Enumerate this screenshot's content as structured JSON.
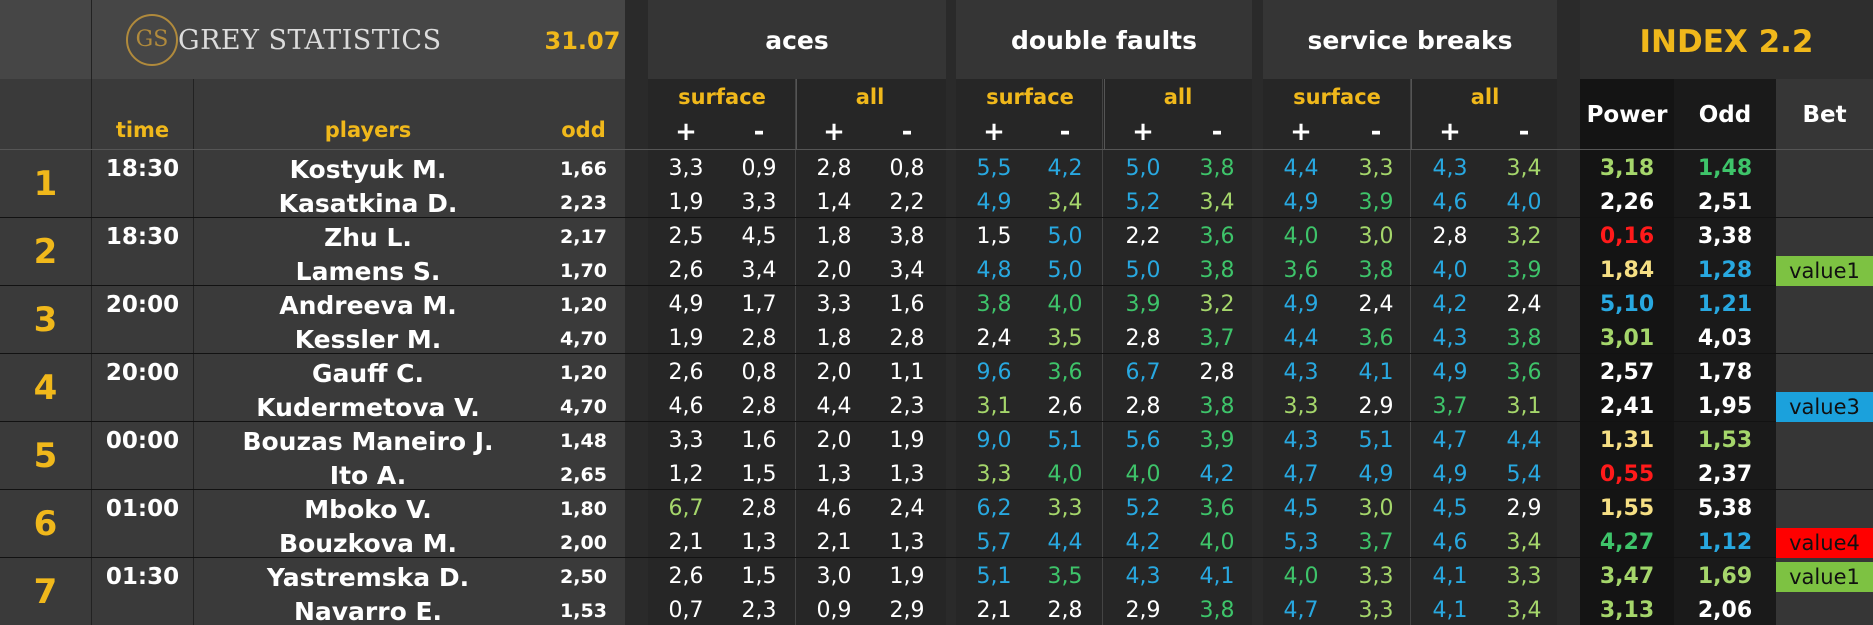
{
  "header": {
    "logo_initials": "GS",
    "brand": "GREY STATISTICS",
    "date": "31.07",
    "groups": {
      "aces": "aces",
      "double_faults": "double faults",
      "service_breaks": "service breaks"
    },
    "index_title": "INDEX 2.2",
    "sub": {
      "surface": "surface",
      "all": "all",
      "plus": "+",
      "minus": "-"
    },
    "columns": {
      "time": "time",
      "players": "players",
      "odd": "odd",
      "power": "Power",
      "idx_odd": "Odd",
      "bet": "Bet"
    }
  },
  "colors": {
    "white": "#ffffff",
    "blue": "#28a8e0",
    "green": "#3ec46a",
    "lightgreen": "#a5d66b",
    "red": "#ff1a1a",
    "yellow": "#f6df84",
    "gold": "#f0b81b",
    "bet_green": "#7dc242",
    "bet_blue": "#1ba1dc",
    "bet_red": "#ff0000"
  },
  "matches": [
    {
      "num": "1",
      "time": "18:30",
      "bet": "",
      "players": [
        {
          "name": "Kostyuk M.",
          "odd": "1,66",
          "stats": [
            [
              "3,3",
              "w"
            ],
            [
              "0,9",
              "w"
            ],
            [
              "2,8",
              "w"
            ],
            [
              "0,8",
              "w"
            ],
            [
              "5,5",
              "b"
            ],
            [
              "4,2",
              "b"
            ],
            [
              "5,0",
              "b"
            ],
            [
              "3,8",
              "g"
            ],
            [
              "4,4",
              "b"
            ],
            [
              "3,3",
              "lg"
            ],
            [
              "4,3",
              "b"
            ],
            [
              "3,4",
              "lg"
            ]
          ],
          "power": [
            "3,18",
            "lg"
          ],
          "index_odd": [
            "1,48",
            "g"
          ],
          "bet": ""
        },
        {
          "name": "Kasatkina D.",
          "odd": "2,23",
          "stats": [
            [
              "1,9",
              "w"
            ],
            [
              "3,3",
              "w"
            ],
            [
              "1,4",
              "w"
            ],
            [
              "2,2",
              "w"
            ],
            [
              "4,9",
              "b"
            ],
            [
              "3,4",
              "lg"
            ],
            [
              "5,2",
              "b"
            ],
            [
              "3,4",
              "lg"
            ],
            [
              "4,9",
              "b"
            ],
            [
              "3,9",
              "g"
            ],
            [
              "4,6",
              "b"
            ],
            [
              "4,0",
              "b"
            ]
          ],
          "power": [
            "2,26",
            "w"
          ],
          "index_odd": [
            "2,51",
            "w"
          ],
          "bet": ""
        }
      ]
    },
    {
      "num": "2",
      "time": "18:30",
      "players": [
        {
          "name": "Zhu L.",
          "odd": "2,17",
          "stats": [
            [
              "2,5",
              "w"
            ],
            [
              "4,5",
              "w"
            ],
            [
              "1,8",
              "w"
            ],
            [
              "3,8",
              "w"
            ],
            [
              "1,5",
              "w"
            ],
            [
              "5,0",
              "b"
            ],
            [
              "2,2",
              "w"
            ],
            [
              "3,6",
              "g"
            ],
            [
              "4,0",
              "g"
            ],
            [
              "3,0",
              "lg"
            ],
            [
              "2,8",
              "w"
            ],
            [
              "3,2",
              "lg"
            ]
          ],
          "power": [
            "0,16",
            "r"
          ],
          "index_odd": [
            "3,38",
            "w"
          ],
          "bet": ""
        },
        {
          "name": "Lamens S.",
          "odd": "1,70",
          "stats": [
            [
              "2,6",
              "w"
            ],
            [
              "3,4",
              "w"
            ],
            [
              "2,0",
              "w"
            ],
            [
              "3,4",
              "w"
            ],
            [
              "4,8",
              "b"
            ],
            [
              "5,0",
              "b"
            ],
            [
              "5,0",
              "b"
            ],
            [
              "3,8",
              "g"
            ],
            [
              "3,6",
              "g"
            ],
            [
              "3,8",
              "g"
            ],
            [
              "4,0",
              "b"
            ],
            [
              "3,9",
              "g"
            ]
          ],
          "power": [
            "1,84",
            "y"
          ],
          "index_odd": [
            "1,28",
            "b"
          ],
          "bet": "value1",
          "bet_color": "#7dc242"
        }
      ]
    },
    {
      "num": "3",
      "time": "20:00",
      "players": [
        {
          "name": "Andreeva M.",
          "odd": "1,20",
          "stats": [
            [
              "4,9",
              "w"
            ],
            [
              "1,7",
              "w"
            ],
            [
              "3,3",
              "w"
            ],
            [
              "1,6",
              "w"
            ],
            [
              "3,8",
              "g"
            ],
            [
              "4,0",
              "g"
            ],
            [
              "3,9",
              "g"
            ],
            [
              "3,2",
              "lg"
            ],
            [
              "4,9",
              "b"
            ],
            [
              "2,4",
              "w"
            ],
            [
              "4,2",
              "b"
            ],
            [
              "2,4",
              "w"
            ]
          ],
          "power": [
            "5,10",
            "b"
          ],
          "index_odd": [
            "1,21",
            "b"
          ],
          "bet": ""
        },
        {
          "name": "Kessler M.",
          "odd": "4,70",
          "stats": [
            [
              "1,9",
              "w"
            ],
            [
              "2,8",
              "w"
            ],
            [
              "1,8",
              "w"
            ],
            [
              "2,8",
              "w"
            ],
            [
              "2,4",
              "w"
            ],
            [
              "3,5",
              "lg"
            ],
            [
              "2,8",
              "w"
            ],
            [
              "3,7",
              "g"
            ],
            [
              "4,4",
              "b"
            ],
            [
              "3,6",
              "g"
            ],
            [
              "4,3",
              "b"
            ],
            [
              "3,8",
              "g"
            ]
          ],
          "power": [
            "3,01",
            "lg"
          ],
          "index_odd": [
            "4,03",
            "w"
          ],
          "bet": ""
        }
      ]
    },
    {
      "num": "4",
      "time": "20:00",
      "players": [
        {
          "name": "Gauff C.",
          "odd": "1,20",
          "stats": [
            [
              "2,6",
              "w"
            ],
            [
              "0,8",
              "w"
            ],
            [
              "2,0",
              "w"
            ],
            [
              "1,1",
              "w"
            ],
            [
              "9,6",
              "b"
            ],
            [
              "3,6",
              "g"
            ],
            [
              "6,7",
              "b"
            ],
            [
              "2,8",
              "w"
            ],
            [
              "4,3",
              "b"
            ],
            [
              "4,1",
              "b"
            ],
            [
              "4,9",
              "b"
            ],
            [
              "3,6",
              "g"
            ]
          ],
          "power": [
            "2,57",
            "w"
          ],
          "index_odd": [
            "1,78",
            "w"
          ],
          "bet": ""
        },
        {
          "name": "Kudermetova V.",
          "odd": "4,70",
          "stats": [
            [
              "4,6",
              "w"
            ],
            [
              "2,8",
              "w"
            ],
            [
              "4,4",
              "w"
            ],
            [
              "2,3",
              "w"
            ],
            [
              "3,1",
              "lg"
            ],
            [
              "2,6",
              "w"
            ],
            [
              "2,8",
              "w"
            ],
            [
              "3,8",
              "g"
            ],
            [
              "3,3",
              "lg"
            ],
            [
              "2,9",
              "w"
            ],
            [
              "3,7",
              "g"
            ],
            [
              "3,1",
              "lg"
            ]
          ],
          "power": [
            "2,41",
            "w"
          ],
          "index_odd": [
            "1,95",
            "w"
          ],
          "bet": "value3",
          "bet_color": "#1ba1dc"
        }
      ]
    },
    {
      "num": "5",
      "time": "00:00",
      "players": [
        {
          "name": "Bouzas Maneiro J.",
          "odd": "1,48",
          "stats": [
            [
              "3,3",
              "w"
            ],
            [
              "1,6",
              "w"
            ],
            [
              "2,0",
              "w"
            ],
            [
              "1,9",
              "w"
            ],
            [
              "9,0",
              "b"
            ],
            [
              "5,1",
              "b"
            ],
            [
              "5,6",
              "b"
            ],
            [
              "3,9",
              "g"
            ],
            [
              "4,3",
              "b"
            ],
            [
              "5,1",
              "b"
            ],
            [
              "4,7",
              "b"
            ],
            [
              "4,4",
              "b"
            ]
          ],
          "power": [
            "1,31",
            "y"
          ],
          "index_odd": [
            "1,53",
            "lg"
          ],
          "bet": ""
        },
        {
          "name": "Ito A.",
          "odd": "2,65",
          "stats": [
            [
              "1,2",
              "w"
            ],
            [
              "1,5",
              "w"
            ],
            [
              "1,3",
              "w"
            ],
            [
              "1,3",
              "w"
            ],
            [
              "3,3",
              "lg"
            ],
            [
              "4,0",
              "g"
            ],
            [
              "4,0",
              "g"
            ],
            [
              "4,2",
              "b"
            ],
            [
              "4,7",
              "b"
            ],
            [
              "4,9",
              "b"
            ],
            [
              "4,9",
              "b"
            ],
            [
              "5,4",
              "b"
            ]
          ],
          "power": [
            "0,55",
            "r"
          ],
          "index_odd": [
            "2,37",
            "w"
          ],
          "bet": ""
        }
      ]
    },
    {
      "num": "6",
      "time": "01:00",
      "players": [
        {
          "name": "Mboko V.",
          "odd": "1,80",
          "stats": [
            [
              "6,7",
              "lg"
            ],
            [
              "2,8",
              "w"
            ],
            [
              "4,6",
              "w"
            ],
            [
              "2,4",
              "w"
            ],
            [
              "6,2",
              "b"
            ],
            [
              "3,3",
              "lg"
            ],
            [
              "5,2",
              "b"
            ],
            [
              "3,6",
              "g"
            ],
            [
              "4,5",
              "b"
            ],
            [
              "3,0",
              "lg"
            ],
            [
              "4,5",
              "b"
            ],
            [
              "2,9",
              "w"
            ]
          ],
          "power": [
            "1,55",
            "y"
          ],
          "index_odd": [
            "5,38",
            "w"
          ],
          "bet": ""
        },
        {
          "name": "Bouzkova M.",
          "odd": "2,00",
          "stats": [
            [
              "2,1",
              "w"
            ],
            [
              "1,3",
              "w"
            ],
            [
              "2,1",
              "w"
            ],
            [
              "1,3",
              "w"
            ],
            [
              "5,7",
              "b"
            ],
            [
              "4,4",
              "b"
            ],
            [
              "4,2",
              "b"
            ],
            [
              "4,0",
              "g"
            ],
            [
              "5,3",
              "b"
            ],
            [
              "3,7",
              "g"
            ],
            [
              "4,6",
              "b"
            ],
            [
              "3,4",
              "lg"
            ]
          ],
          "power": [
            "4,27",
            "g"
          ],
          "index_odd": [
            "1,12",
            "b"
          ],
          "bet": "value4",
          "bet_color": "#ff0000"
        }
      ]
    },
    {
      "num": "7",
      "time": "01:30",
      "players": [
        {
          "name": "Yastremska D.",
          "odd": "2,50",
          "stats": [
            [
              "2,6",
              "w"
            ],
            [
              "1,5",
              "w"
            ],
            [
              "3,0",
              "w"
            ],
            [
              "1,9",
              "w"
            ],
            [
              "5,1",
              "b"
            ],
            [
              "3,5",
              "g"
            ],
            [
              "4,3",
              "b"
            ],
            [
              "4,1",
              "b"
            ],
            [
              "4,0",
              "g"
            ],
            [
              "3,3",
              "lg"
            ],
            [
              "4,1",
              "b"
            ],
            [
              "3,3",
              "lg"
            ]
          ],
          "power": [
            "3,47",
            "lg"
          ],
          "index_odd": [
            "1,69",
            "lg"
          ],
          "bet": "value1",
          "bet_color": "#7dc242"
        },
        {
          "name": "Navarro E.",
          "odd": "1,53",
          "stats": [
            [
              "0,7",
              "w"
            ],
            [
              "2,3",
              "w"
            ],
            [
              "0,9",
              "w"
            ],
            [
              "2,9",
              "w"
            ],
            [
              "2,1",
              "w"
            ],
            [
              "2,8",
              "w"
            ],
            [
              "2,9",
              "w"
            ],
            [
              "3,8",
              "g"
            ],
            [
              "4,7",
              "b"
            ],
            [
              "3,3",
              "lg"
            ],
            [
              "4,1",
              "b"
            ],
            [
              "3,4",
              "lg"
            ]
          ],
          "power": [
            "3,13",
            "lg"
          ],
          "index_odd": [
            "2,06",
            "w"
          ],
          "bet": ""
        }
      ]
    }
  ]
}
